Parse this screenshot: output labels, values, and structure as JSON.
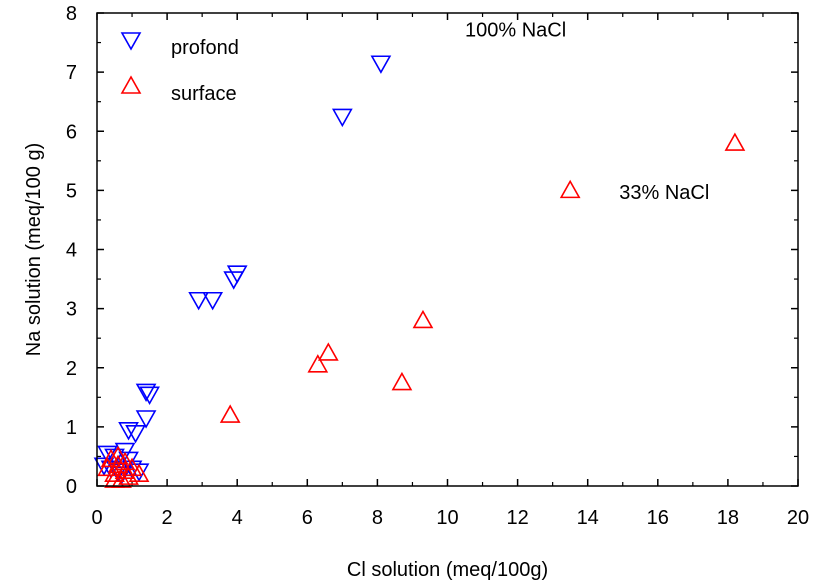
{
  "chart_data": {
    "type": "scatter",
    "title": "",
    "xlabel": "Cl  solution (meq/100g)",
    "ylabel": "Na solution (meq/100 g)",
    "xlim": [
      0,
      20
    ],
    "ylim": [
      0,
      8
    ],
    "xticks": [
      0,
      2,
      4,
      6,
      8,
      10,
      12,
      14,
      16,
      18,
      20
    ],
    "yticks": [
      0,
      1,
      2,
      3,
      4,
      5,
      6,
      7,
      8
    ],
    "grid": false,
    "legend_position": "top-left",
    "annotations": [
      {
        "text": "100% NaCl",
        "x": 10.5,
        "y": 7.6
      },
      {
        "text": "33% NaCl",
        "x": 14.9,
        "y": 4.85
      }
    ],
    "series": [
      {
        "name": "profond",
        "marker": "triangle-down",
        "color": "#0000ff",
        "points": [
          {
            "x": 0.3,
            "y": 0.55
          },
          {
            "x": 0.5,
            "y": 0.5
          },
          {
            "x": 0.2,
            "y": 0.35
          },
          {
            "x": 0.4,
            "y": 0.3
          },
          {
            "x": 0.6,
            "y": 0.25
          },
          {
            "x": 0.8,
            "y": 0.6
          },
          {
            "x": 0.7,
            "y": 0.2
          },
          {
            "x": 0.9,
            "y": 0.45
          },
          {
            "x": 1.0,
            "y": 0.3
          },
          {
            "x": 1.2,
            "y": 0.25
          },
          {
            "x": 0.9,
            "y": 0.95
          },
          {
            "x": 1.1,
            "y": 0.9
          },
          {
            "x": 1.4,
            "y": 1.15
          },
          {
            "x": 1.4,
            "y": 1.6
          },
          {
            "x": 1.5,
            "y": 1.55
          },
          {
            "x": 2.9,
            "y": 3.15
          },
          {
            "x": 3.3,
            "y": 3.15
          },
          {
            "x": 3.9,
            "y": 3.5
          },
          {
            "x": 4.0,
            "y": 3.6
          },
          {
            "x": 7.0,
            "y": 6.25
          },
          {
            "x": 8.1,
            "y": 7.15
          }
        ]
      },
      {
        "name": "surface",
        "marker": "triangle-up",
        "color": "#ff0000",
        "points": [
          {
            "x": 0.3,
            "y": 0.3
          },
          {
            "x": 0.4,
            "y": 0.45
          },
          {
            "x": 0.5,
            "y": 0.2
          },
          {
            "x": 0.6,
            "y": 0.35
          },
          {
            "x": 0.7,
            "y": 0.1
          },
          {
            "x": 0.8,
            "y": 0.25
          },
          {
            "x": 0.9,
            "y": 0.15
          },
          {
            "x": 1.0,
            "y": 0.3
          },
          {
            "x": 0.5,
            "y": 0.1
          },
          {
            "x": 1.2,
            "y": 0.2
          },
          {
            "x": 0.6,
            "y": 0.5
          },
          {
            "x": 0.8,
            "y": 0.4
          },
          {
            "x": 3.8,
            "y": 1.2
          },
          {
            "x": 6.3,
            "y": 2.05
          },
          {
            "x": 6.6,
            "y": 2.25
          },
          {
            "x": 8.7,
            "y": 1.75
          },
          {
            "x": 9.3,
            "y": 2.8
          },
          {
            "x": 13.5,
            "y": 5.0
          },
          {
            "x": 18.2,
            "y": 5.8
          }
        ]
      }
    ]
  }
}
